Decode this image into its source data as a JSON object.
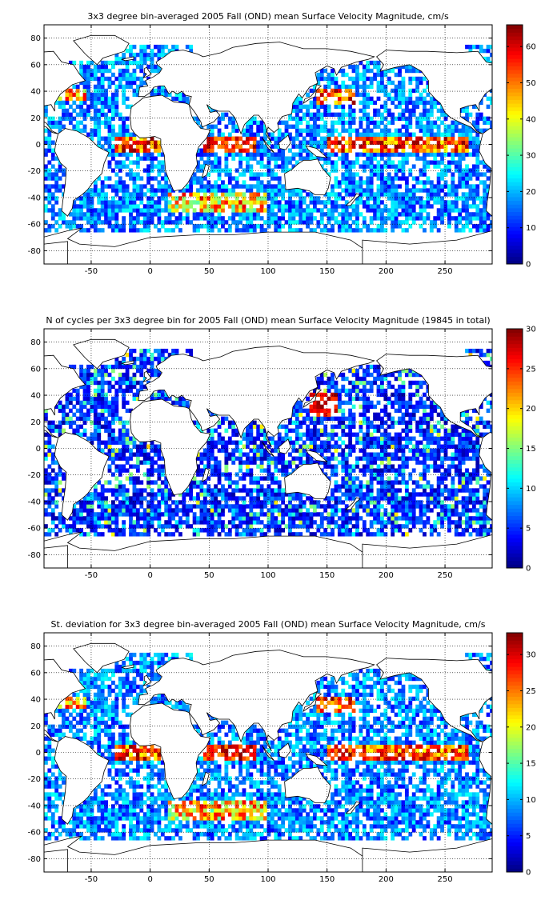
{
  "chart_data": [
    {
      "type": "heatmap",
      "title": "3x3 degree bin-averaged 2005 Fall (OND) mean Surface Velocity Magnitude, cm/s",
      "bin_size_deg": 3,
      "xlim": [
        -90,
        290
      ],
      "ylim": [
        -90,
        90
      ],
      "xticks": [
        -50,
        0,
        50,
        100,
        150,
        200,
        250
      ],
      "yticks": [
        -80,
        -60,
        -40,
        -20,
        0,
        20,
        40,
        60,
        80
      ],
      "colorbar": {
        "min": 0,
        "max": 66,
        "ticks": [
          0,
          10,
          20,
          30,
          40,
          50,
          60
        ]
      },
      "grid": true,
      "colormap": "jet",
      "coastlines": true,
      "field": "speed"
    },
    {
      "type": "heatmap",
      "title": "N of cycles per 3x3 degree bin for 2005 Fall (OND) mean Surface Velocity Magnitude (19845 in total)",
      "bin_size_deg": 3,
      "xlim": [
        -90,
        290
      ],
      "ylim": [
        -90,
        90
      ],
      "xticks": [
        -50,
        0,
        50,
        100,
        150,
        200,
        250
      ],
      "yticks": [
        -80,
        -60,
        -40,
        -20,
        0,
        20,
        40,
        60,
        80
      ],
      "colorbar": {
        "min": 0,
        "max": 30,
        "ticks": [
          0,
          5,
          10,
          15,
          20,
          25,
          30
        ]
      },
      "grid": true,
      "colormap": "jet",
      "coastlines": true,
      "field": "count"
    },
    {
      "type": "heatmap",
      "title": "St. deviation for 3x3 degree bin-averaged 2005 Fall (OND) mean Surface Velocity Magnitude, cm/s",
      "bin_size_deg": 3,
      "xlim": [
        -90,
        290
      ],
      "ylim": [
        -90,
        90
      ],
      "xticks": [
        -50,
        0,
        50,
        100,
        150,
        200,
        250
      ],
      "yticks": [
        -80,
        -60,
        -40,
        -20,
        0,
        20,
        40,
        60,
        80
      ],
      "colorbar": {
        "min": 0,
        "max": 33,
        "ticks": [
          0,
          5,
          10,
          15,
          20,
          25,
          30
        ]
      },
      "grid": true,
      "colormap": "jet",
      "coastlines": true,
      "field": "std"
    }
  ]
}
